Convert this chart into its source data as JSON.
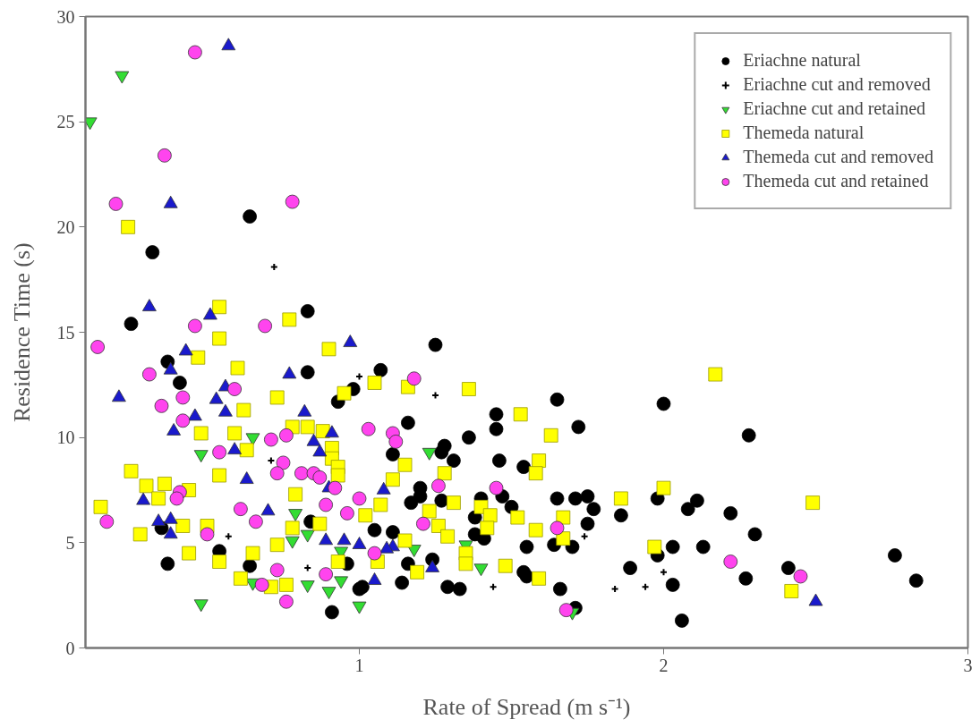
{
  "chart_data": {
    "type": "scatter",
    "xlabel": "Rate of Spread (m s⁻¹)",
    "ylabel": "Residence Time (s)",
    "xlim": [
      0.1,
      3
    ],
    "ylim": [
      0,
      30
    ],
    "xticks": [
      1,
      2,
      3
    ],
    "yticks": [
      0,
      5,
      10,
      15,
      20,
      25,
      30
    ],
    "grid": false,
    "legend": "top right",
    "series": [
      {
        "name": "Eriachne natural",
        "color": "#000000",
        "marker": "circle",
        "x": [
          0.64,
          0.32,
          0.83,
          0.25,
          0.37,
          0.83,
          0.41,
          0.98,
          0.93,
          0.35,
          0.84,
          0.54,
          0.37,
          0.64,
          0.96,
          0.91,
          1.0,
          1.25,
          1.07,
          1.65,
          1.45,
          1.45,
          1.72,
          1.16,
          1.36,
          1.28,
          1.27,
          1.31,
          1.11,
          1.46,
          1.54,
          1.2,
          1.17,
          1.2,
          1.27,
          1.4,
          1.38,
          1.47,
          1.5,
          1.65,
          1.71,
          1.75,
          1.77,
          1.75,
          1.86,
          1.64,
          1.7,
          1.55,
          1.41,
          1.38,
          1.05,
          1.11,
          1.24,
          1.16,
          1.14,
          1.01,
          1.29,
          1.33,
          1.54,
          1.55,
          1.66,
          1.89,
          1.71,
          2.0,
          2.28,
          1.98,
          2.11,
          2.08,
          2.22,
          2.3,
          1.98,
          2.03,
          2.13,
          2.03,
          2.27,
          2.41,
          2.06,
          2.76,
          2.83
        ],
        "values": [
          20.5,
          18.8,
          16.0,
          15.4,
          13.6,
          13.1,
          12.6,
          12.3,
          11.7,
          5.7,
          6.0,
          4.6,
          4.0,
          3.9,
          4.0,
          1.7,
          2.8,
          14.4,
          13.2,
          11.8,
          11.1,
          10.4,
          10.5,
          10.7,
          10.0,
          9.6,
          9.3,
          8.9,
          9.2,
          8.9,
          8.6,
          7.6,
          6.9,
          7.2,
          7.0,
          7.1,
          6.2,
          7.2,
          6.7,
          7.1,
          7.1,
          7.2,
          6.6,
          5.9,
          6.3,
          4.9,
          4.8,
          4.8,
          5.2,
          5.4,
          5.6,
          5.5,
          4.2,
          4.0,
          3.1,
          2.9,
          2.9,
          2.8,
          3.6,
          3.4,
          2.8,
          3.8,
          1.9,
          11.6,
          10.1,
          7.1,
          7.0,
          6.6,
          6.4,
          5.4,
          4.4,
          4.8,
          4.8,
          3.0,
          3.3,
          3.8,
          1.3,
          4.4,
          3.2
        ]
      },
      {
        "name": "Eriachne cut and removed",
        "color": "#000000",
        "marker": "cross",
        "x": [
          0.72,
          0.71,
          0.57,
          0.83,
          1.0,
          1.25,
          1.74,
          1.44,
          1.84,
          1.94,
          2.0
        ],
        "values": [
          18.1,
          8.9,
          5.3,
          3.8,
          12.9,
          12.0,
          5.3,
          2.9,
          2.8,
          2.9,
          3.6
        ]
      },
      {
        "name": "Eriachne cut and retained",
        "color": "#33dd33",
        "marker": "triangle_down",
        "x": [
          0.22,
          0.115,
          0.65,
          0.48,
          0.79,
          0.83,
          0.78,
          0.65,
          0.83,
          0.9,
          0.94,
          0.94,
          0.48,
          1.0,
          1.23,
          1.18,
          1.35,
          1.4,
          1.7
        ],
        "values": [
          27.2,
          25.0,
          10.0,
          9.2,
          6.4,
          5.4,
          5.1,
          3.1,
          3.0,
          2.7,
          3.2,
          4.6,
          2.1,
          2.0,
          9.3,
          4.7,
          4.9,
          3.8,
          1.7
        ]
      },
      {
        "name": "Themeda natural",
        "color": "#ffff00",
        "marker": "square",
        "x": [
          0.24,
          0.54,
          0.77,
          0.54,
          0.9,
          0.47,
          0.6,
          0.95,
          0.73,
          0.62,
          0.48,
          0.59,
          0.78,
          0.83,
          0.88,
          0.63,
          0.91,
          0.91,
          0.93,
          0.93,
          0.25,
          0.54,
          0.3,
          0.36,
          0.44,
          0.34,
          0.79,
          0.15,
          0.28,
          0.42,
          0.5,
          0.78,
          0.87,
          0.73,
          0.44,
          0.54,
          0.65,
          0.61,
          0.71,
          0.76,
          0.93,
          1.05,
          1.16,
          1.36,
          1.53,
          1.63,
          1.15,
          1.59,
          1.58,
          1.28,
          1.11,
          1.07,
          1.02,
          1.23,
          1.31,
          1.4,
          1.43,
          1.42,
          1.52,
          1.58,
          1.86,
          1.67,
          1.67,
          1.26,
          1.29,
          1.15,
          1.35,
          1.35,
          1.06,
          1.19,
          1.48,
          1.59,
          2.17,
          2.0,
          2.49,
          1.97,
          2.42
        ],
        "values": [
          20.0,
          16.2,
          15.6,
          14.7,
          14.2,
          13.8,
          13.3,
          12.1,
          11.9,
          11.3,
          10.2,
          10.2,
          10.5,
          10.5,
          10.3,
          9.4,
          9.5,
          9.0,
          8.6,
          8.2,
          8.4,
          8.2,
          7.7,
          7.8,
          7.5,
          7.1,
          7.3,
          6.7,
          5.4,
          5.8,
          5.8,
          5.7,
          5.9,
          4.9,
          4.5,
          4.1,
          4.5,
          3.3,
          2.9,
          3.0,
          4.1,
          12.6,
          12.4,
          12.3,
          11.1,
          10.1,
          8.7,
          8.9,
          8.3,
          8.3,
          8.0,
          6.8,
          6.3,
          6.5,
          6.9,
          6.7,
          6.3,
          5.7,
          6.2,
          5.6,
          7.1,
          6.2,
          5.2,
          5.8,
          5.3,
          5.1,
          4.5,
          4.0,
          4.1,
          3.6,
          3.9,
          3.3,
          13.0,
          7.6,
          6.9,
          4.8,
          2.7
        ]
      },
      {
        "name": "Themeda cut and removed",
        "color": "#1a1acc",
        "marker": "triangle",
        "x": [
          0.57,
          0.38,
          0.31,
          0.51,
          0.97,
          0.43,
          0.38,
          0.77,
          0.21,
          0.53,
          0.56,
          0.46,
          0.39,
          0.56,
          0.82,
          0.91,
          0.59,
          0.85,
          0.87,
          0.63,
          0.29,
          0.9,
          0.7,
          0.34,
          0.38,
          0.38,
          0.89,
          0.95,
          1.08,
          1.11,
          1.09,
          1.0,
          1.24,
          1.05,
          2.5
        ],
        "values": [
          28.6,
          21.1,
          16.2,
          15.8,
          14.5,
          14.1,
          13.2,
          13.0,
          11.9,
          11.8,
          12.4,
          11.0,
          10.3,
          11.2,
          11.2,
          10.2,
          9.4,
          9.8,
          9.3,
          8.0,
          7.0,
          7.6,
          6.5,
          6.0,
          6.1,
          5.4,
          5.1,
          5.1,
          7.5,
          4.8,
          4.7,
          4.9,
          3.8,
          3.2,
          2.2
        ]
      },
      {
        "name": "Themeda cut and retained",
        "color": "#ff44ee",
        "marker": "circle",
        "x": [
          0.46,
          0.36,
          0.2,
          0.78,
          0.46,
          0.69,
          0.14,
          0.31,
          0.59,
          0.42,
          0.35,
          0.42,
          0.71,
          0.76,
          0.54,
          0.75,
          0.73,
          0.81,
          0.85,
          0.87,
          0.41,
          0.4,
          0.92,
          0.17,
          0.61,
          0.66,
          0.89,
          0.96,
          0.5,
          0.73,
          0.68,
          0.76,
          0.89,
          1.18,
          1.03,
          1.11,
          1.12,
          1.26,
          1.45,
          1.0,
          1.21,
          1.05,
          1.65,
          1.68,
          2.22,
          2.45
        ],
        "values": [
          28.3,
          23.4,
          21.1,
          21.2,
          15.3,
          15.3,
          14.3,
          13.0,
          12.3,
          11.9,
          11.5,
          10.8,
          9.9,
          10.1,
          9.3,
          8.8,
          8.3,
          8.3,
          8.3,
          8.1,
          7.4,
          7.1,
          7.6,
          6.0,
          6.6,
          6.0,
          6.8,
          6.4,
          5.4,
          3.7,
          3.0,
          2.2,
          3.5,
          12.8,
          10.4,
          10.2,
          9.8,
          7.7,
          7.6,
          7.1,
          5.9,
          4.5,
          5.7,
          1.8,
          4.1,
          3.4
        ]
      }
    ]
  }
}
